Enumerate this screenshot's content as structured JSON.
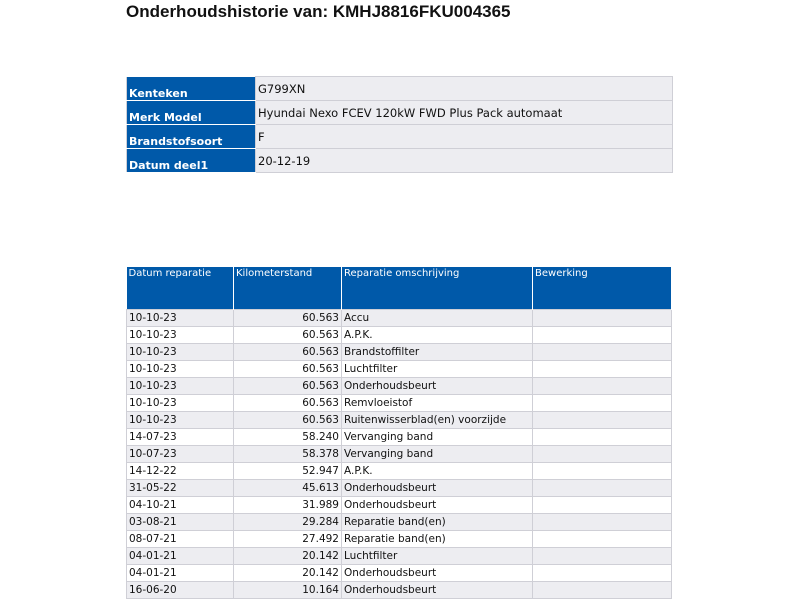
{
  "title": "Onderhoudshistorie van: KMHJ8816FKU004365",
  "vehicle": [
    {
      "label": "Kenteken",
      "value": "G799XN"
    },
    {
      "label": "Merk Model",
      "value": "Hyundai Nexo FCEV 120kW FWD Plus Pack automaat"
    },
    {
      "label": "Brandstofsoort",
      "value": "F"
    },
    {
      "label": "Datum deel1",
      "value": "20-12-19"
    }
  ],
  "history": {
    "headers": [
      "Datum reparatie",
      "Kilometerstand",
      "Reparatie omschrijving",
      "Bewerking"
    ],
    "rows": [
      [
        "10-10-23",
        "60.563",
        "Accu",
        ""
      ],
      [
        "10-10-23",
        "60.563",
        "A.P.K.",
        ""
      ],
      [
        "10-10-23",
        "60.563",
        "Brandstoffilter",
        ""
      ],
      [
        "10-10-23",
        "60.563",
        "Luchtfilter",
        ""
      ],
      [
        "10-10-23",
        "60.563",
        "Onderhoudsbeurt",
        ""
      ],
      [
        "10-10-23",
        "60.563",
        "Remvloeistof",
        ""
      ],
      [
        "10-10-23",
        "60.563",
        "Ruitenwisserblad(en) voorzijde",
        ""
      ],
      [
        "14-07-23",
        "58.240",
        "Vervanging band",
        ""
      ],
      [
        "10-07-23",
        "58.378",
        "Vervanging band",
        ""
      ],
      [
        "14-12-22",
        "52.947",
        "A.P.K.",
        ""
      ],
      [
        "31-05-22",
        "45.613",
        "Onderhoudsbeurt",
        ""
      ],
      [
        "04-10-21",
        "31.989",
        "Onderhoudsbeurt",
        ""
      ],
      [
        "03-08-21",
        "29.284",
        "Reparatie band(en)",
        ""
      ],
      [
        "08-07-21",
        "27.492",
        "Reparatie band(en)",
        ""
      ],
      [
        "04-01-21",
        "20.142",
        "Luchtfilter",
        ""
      ],
      [
        "04-01-21",
        "20.142",
        "Onderhoudsbeurt",
        ""
      ],
      [
        "16-06-20",
        "10.164",
        "Onderhoudsbeurt",
        ""
      ]
    ]
  }
}
